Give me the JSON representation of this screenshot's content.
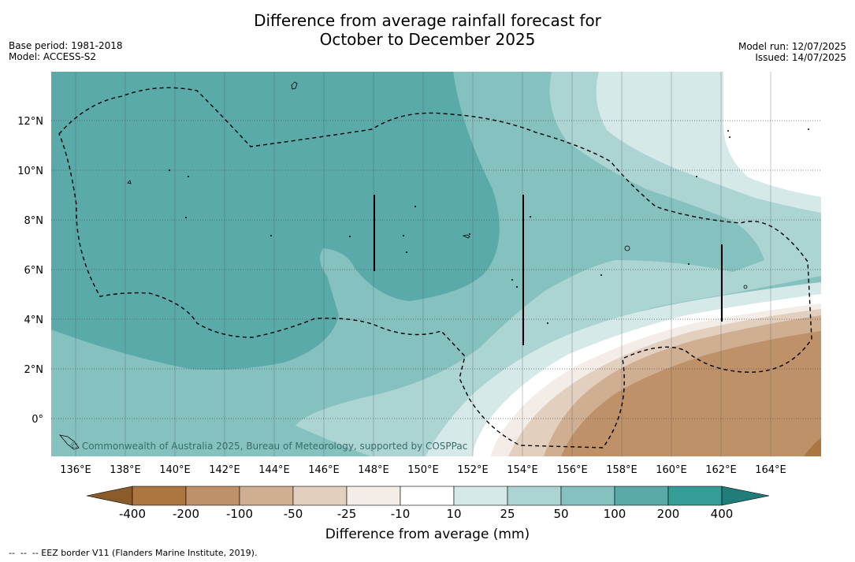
{
  "title_line1": "Difference from average rainfall forecast for",
  "title_line2": "October to December 2025",
  "meta_left": {
    "base_period": "Base period: 1981-2018",
    "model": "Model: ACCESS-S2"
  },
  "meta_right": {
    "model_run": "Model run: 12/07/2025",
    "issued": "Issued: 14/07/2025"
  },
  "map": {
    "x_ticks": [
      "136°E",
      "138°E",
      "140°E",
      "142°E",
      "144°E",
      "146°E",
      "148°E",
      "150°E",
      "152°E",
      "154°E",
      "156°E",
      "158°E",
      "160°E",
      "162°E",
      "164°E"
    ],
    "y_ticks": [
      "12°N",
      "10°N",
      "8°N",
      "6°N",
      "4°N",
      "2°N",
      "0°"
    ],
    "lon_range": [
      135,
      166
    ],
    "lat_range": [
      -1.5,
      14
    ],
    "copyright": "© Commonwealth of Australia 2025, Bureau of Meteorology, supported by COSPPac"
  },
  "colorbar": {
    "title": "Difference from average (mm)",
    "labels": [
      "-400",
      "-200",
      "-100",
      "-50",
      "-25",
      "-10",
      "10",
      "25",
      "50",
      "100",
      "200",
      "400"
    ],
    "colors": [
      "#ac7641",
      "#be9169",
      "#cfae92",
      "#e2cfbe",
      "#f3ece7",
      "#ffffff",
      "#d5e9e8",
      "#acd4d3",
      "#84c1bf",
      "#5aaaa9",
      "#369c98"
    ],
    "extend_low": "#8c5b2a",
    "extend_high": "#207d7a"
  },
  "footnote": "--  --  -- EEZ border V11 (Flanders Marine Institute, 2019)."
}
